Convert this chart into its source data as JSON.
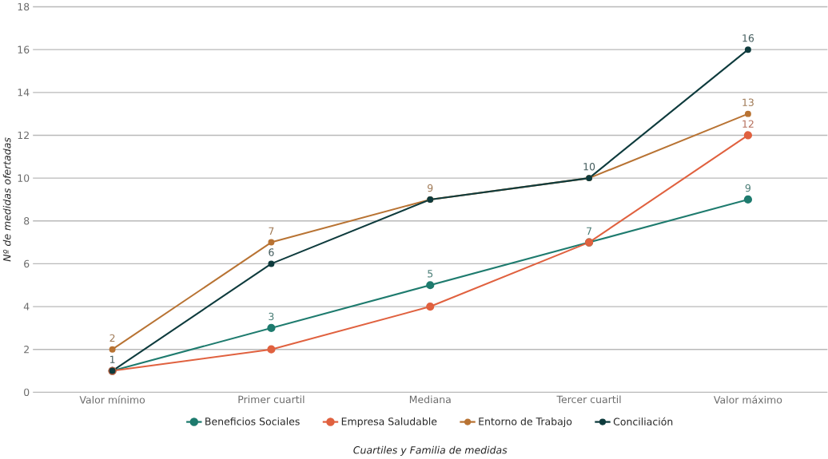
{
  "chart_data": {
    "type": "line",
    "categories": [
      "Valor mínimo",
      "Primer cuartil",
      "Mediana",
      "Tercer cuartil",
      "Valor máximo"
    ],
    "series": [
      {
        "name": "Beneficios Sociales",
        "color": "#1e7b6e",
        "values": [
          1,
          3,
          5,
          7,
          9
        ],
        "value_labels": [
          null,
          "3",
          "5",
          "7",
          "9"
        ]
      },
      {
        "name": "Empresa Saludable",
        "color": "#e0613f",
        "values": [
          1,
          2,
          4,
          7,
          12
        ],
        "value_labels": [
          null,
          null,
          null,
          null,
          "12"
        ]
      },
      {
        "name": "Entorno de Trabajo",
        "color": "#b87333",
        "values": [
          2,
          7,
          9,
          10,
          13
        ],
        "value_labels": [
          "2",
          "7",
          "9",
          null,
          "13"
        ]
      },
      {
        "name": "Conciliación",
        "color": "#0e3b3d",
        "values": [
          1,
          6,
          9,
          10,
          16
        ],
        "value_labels": [
          "1",
          "6",
          null,
          "10",
          "16"
        ]
      }
    ],
    "xlabel": "Cuartiles y Familia de medidas",
    "ylabel": "Nº de medidas ofertadas",
    "ylim": [
      0,
      18
    ],
    "yticks": [
      0,
      2,
      4,
      6,
      8,
      10,
      12,
      14,
      16,
      18
    ],
    "grid": "y",
    "legend": "bottom",
    "marker": "circle",
    "line_style": "solid"
  }
}
